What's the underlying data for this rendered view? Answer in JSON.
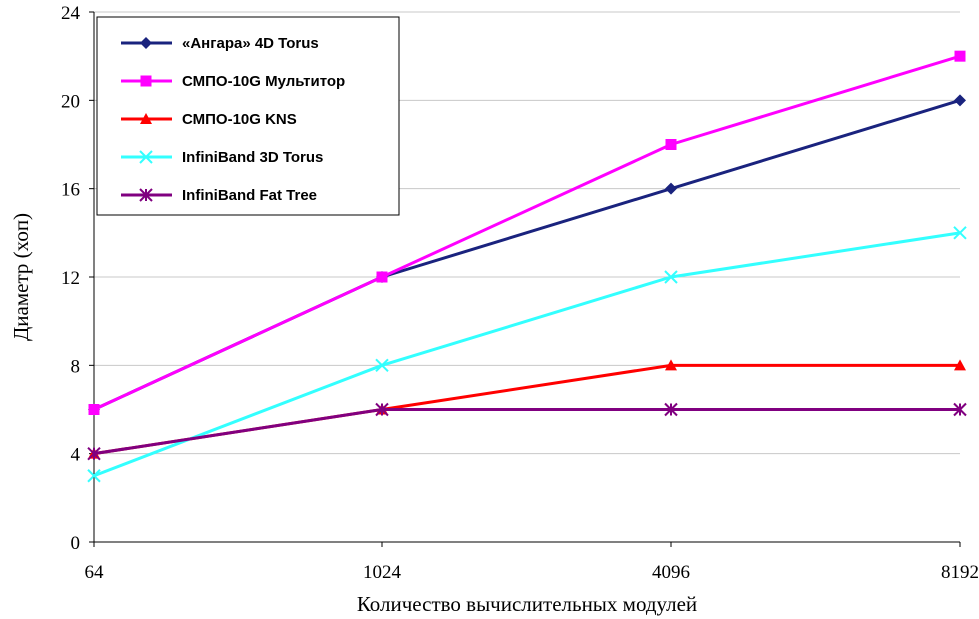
{
  "chart_data": {
    "type": "line",
    "title": "",
    "xlabel": "Количество вычислительных модулей",
    "ylabel": "Диаметр (хоп)",
    "categories": [
      "64",
      "1024",
      "4096",
      "8192"
    ],
    "ylim": [
      0,
      24
    ],
    "yticks": [
      0,
      4,
      8,
      12,
      16,
      20,
      24
    ],
    "grid": true,
    "legend_position": "top-left",
    "series": [
      {
        "name": "«Ангара» 4D Torus",
        "color": "#1a237e",
        "marker": "diamond",
        "values": [
          6,
          12,
          16,
          20
        ]
      },
      {
        "name": "СМПО-10G Мультитор",
        "color": "#ff00ff",
        "marker": "square",
        "values": [
          6,
          12,
          18,
          22
        ]
      },
      {
        "name": "СМПО-10G KNS",
        "color": "#ff0000",
        "marker": "triangle",
        "values": [
          4,
          6,
          8,
          8
        ]
      },
      {
        "name": "InfiniBand 3D Torus",
        "color": "#33ffff",
        "marker": "x",
        "values": [
          3,
          8,
          12,
          14
        ]
      },
      {
        "name": "InfiniBand Fat Tree",
        "color": "#800080",
        "marker": "star",
        "values": [
          4,
          6,
          6,
          6
        ]
      }
    ]
  }
}
